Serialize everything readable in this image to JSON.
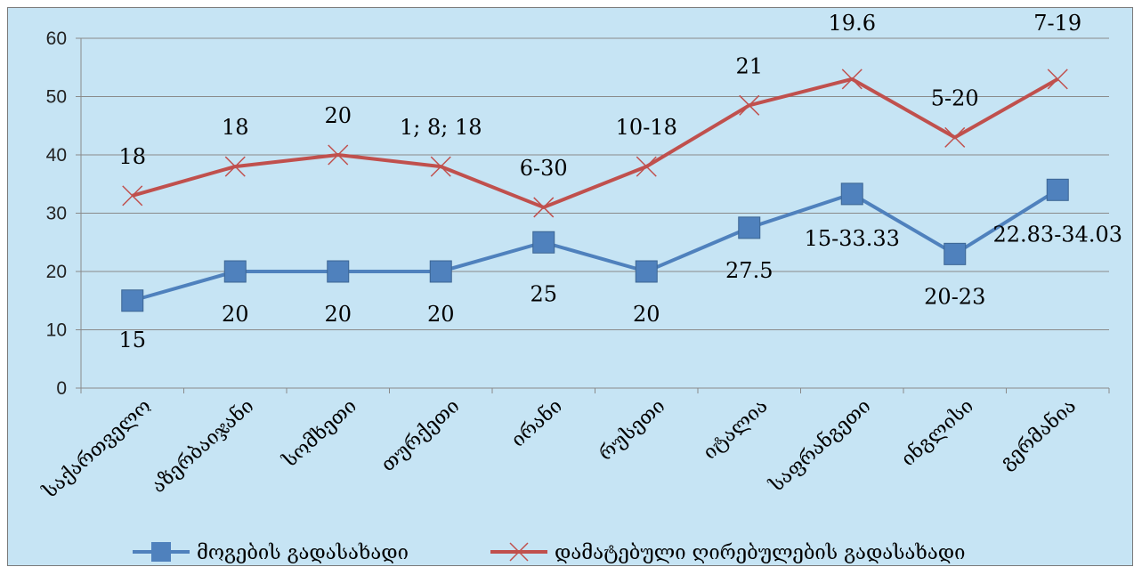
{
  "chart_data": {
    "type": "line",
    "categories": [
      "საქართველო",
      "აზერბაიჯანი",
      "სომხეთი",
      "თურქეთი",
      "ირანი",
      "რუსეთი",
      "იტალია",
      "საფრანგეთი",
      "ინგლისი",
      "გერმანია"
    ],
    "ylim": [
      0,
      60
    ],
    "yticks": [
      0,
      10,
      20,
      30,
      40,
      50,
      60
    ],
    "grid": true,
    "legend": "bottom",
    "series": [
      {
        "name": "მოგების გადასახადი",
        "color": "#4f81bd",
        "marker": "square",
        "values": [
          15,
          20,
          20,
          20,
          25,
          20,
          27.5,
          33.3,
          23,
          34
        ],
        "labels": [
          "15",
          "20",
          "20",
          "20",
          "25",
          "20",
          "27.5",
          "15-33.33",
          "20-23",
          "22.83-34.03"
        ]
      },
      {
        "name": "დამატებული ღირებულების გადასახადი",
        "color": "#c0504d",
        "marker": "x",
        "values": [
          33,
          38,
          40,
          38,
          31,
          38,
          48.5,
          53,
          43,
          53
        ],
        "labels": [
          "18",
          "18",
          "20",
          "1;  8;  18",
          "6-30",
          "10-18",
          "21",
          "19.6",
          "5-20",
          "7-19"
        ]
      }
    ]
  }
}
